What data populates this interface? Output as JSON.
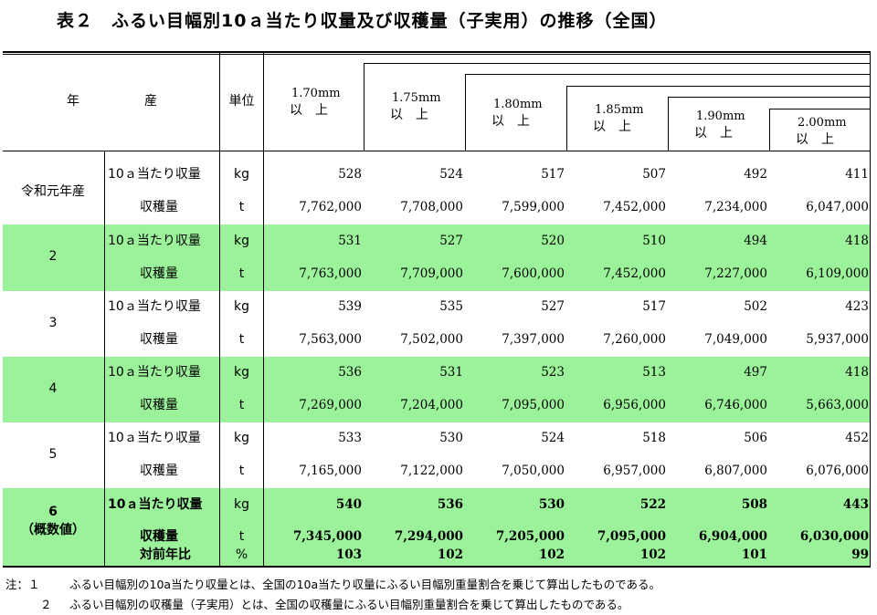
{
  "title": "表２　ふるい目幅別10ａ当たり収量及び収穫量（子実用）の推移（全国）",
  "header": {
    "year_label": "年",
    "production_label": "産",
    "unit_label": "単位",
    "sieves": [
      {
        "size": "1.70mm",
        "suffix": "以　上"
      },
      {
        "size": "1.75mm",
        "suffix": "以　上"
      },
      {
        "size": "1.80mm",
        "suffix": "以　上"
      },
      {
        "size": "1.85mm",
        "suffix": "以　上"
      },
      {
        "size": "1.90mm",
        "suffix": "以　上"
      },
      {
        "size": "2.00mm",
        "suffix": "以　上"
      }
    ]
  },
  "rows": [
    {
      "year": "令和元年産",
      "year_sub": "",
      "highlight": false,
      "lines": [
        {
          "item": "10ａ当たり収量",
          "unit": "kg",
          "values": [
            "528",
            "524",
            "517",
            "507",
            "492",
            "411"
          ]
        },
        {
          "item": "収穫量",
          "unit": "t",
          "values": [
            "7,762,000",
            "7,708,000",
            "7,599,000",
            "7,452,000",
            "7,234,000",
            "6,047,000"
          ]
        }
      ]
    },
    {
      "year": "2",
      "year_sub": "",
      "highlight": true,
      "lines": [
        {
          "item": "10ａ当たり収量",
          "unit": "kg",
          "values": [
            "531",
            "527",
            "520",
            "510",
            "494",
            "418"
          ]
        },
        {
          "item": "収穫量",
          "unit": "t",
          "values": [
            "7,763,000",
            "7,709,000",
            "7,600,000",
            "7,452,000",
            "7,227,000",
            "6,109,000"
          ]
        }
      ]
    },
    {
      "year": "3",
      "year_sub": "",
      "highlight": false,
      "lines": [
        {
          "item": "10ａ当たり収量",
          "unit": "kg",
          "values": [
            "539",
            "535",
            "527",
            "517",
            "502",
            "423"
          ]
        },
        {
          "item": "収穫量",
          "unit": "t",
          "values": [
            "7,563,000",
            "7,502,000",
            "7,397,000",
            "7,260,000",
            "7,049,000",
            "5,937,000"
          ]
        }
      ]
    },
    {
      "year": "4",
      "year_sub": "",
      "highlight": true,
      "lines": [
        {
          "item": "10ａ当たり収量",
          "unit": "kg",
          "values": [
            "536",
            "531",
            "523",
            "513",
            "497",
            "418"
          ]
        },
        {
          "item": "収穫量",
          "unit": "t",
          "values": [
            "7,269,000",
            "7,204,000",
            "7,095,000",
            "6,956,000",
            "6,746,000",
            "5,663,000"
          ]
        }
      ]
    },
    {
      "year": "5",
      "year_sub": "",
      "highlight": false,
      "lines": [
        {
          "item": "10ａ当たり収量",
          "unit": "kg",
          "values": [
            "533",
            "530",
            "524",
            "518",
            "506",
            "452"
          ]
        },
        {
          "item": "収穫量",
          "unit": "t",
          "values": [
            "7,165,000",
            "7,122,000",
            "7,050,000",
            "6,957,000",
            "6,807,000",
            "6,076,000"
          ]
        }
      ]
    },
    {
      "year": "6",
      "year_sub": "（概数値）",
      "highlight": true,
      "bold": true,
      "lines": [
        {
          "item": "10ａ当たり収量",
          "unit": "kg",
          "values": [
            "540",
            "536",
            "530",
            "522",
            "508",
            "443"
          ]
        },
        {
          "item": "収穫量",
          "unit": "t",
          "values": [
            "7,345,000",
            "7,294,000",
            "7,205,000",
            "7,095,000",
            "6,904,000",
            "6,030,000"
          ]
        },
        {
          "item": "対前年比",
          "unit": "%",
          "values": [
            "103",
            "102",
            "102",
            "102",
            "101",
            "99"
          ]
        }
      ]
    }
  ],
  "notes": [
    {
      "label": "注：１",
      "text": "ふるい目幅別の10a当たり収量とは、全国の10a当たり収量にふるい目幅別重量割合を乗じて算出したものである。"
    },
    {
      "label": "２",
      "text": "ふるい目幅別の収穫量（子実用）とは、全国の収穫量にふるい目幅別重量割合を乗じて算出したものである。"
    }
  ],
  "colors": {
    "highlight": "#9bf29b",
    "text": "#000000",
    "rule": "#000000"
  }
}
